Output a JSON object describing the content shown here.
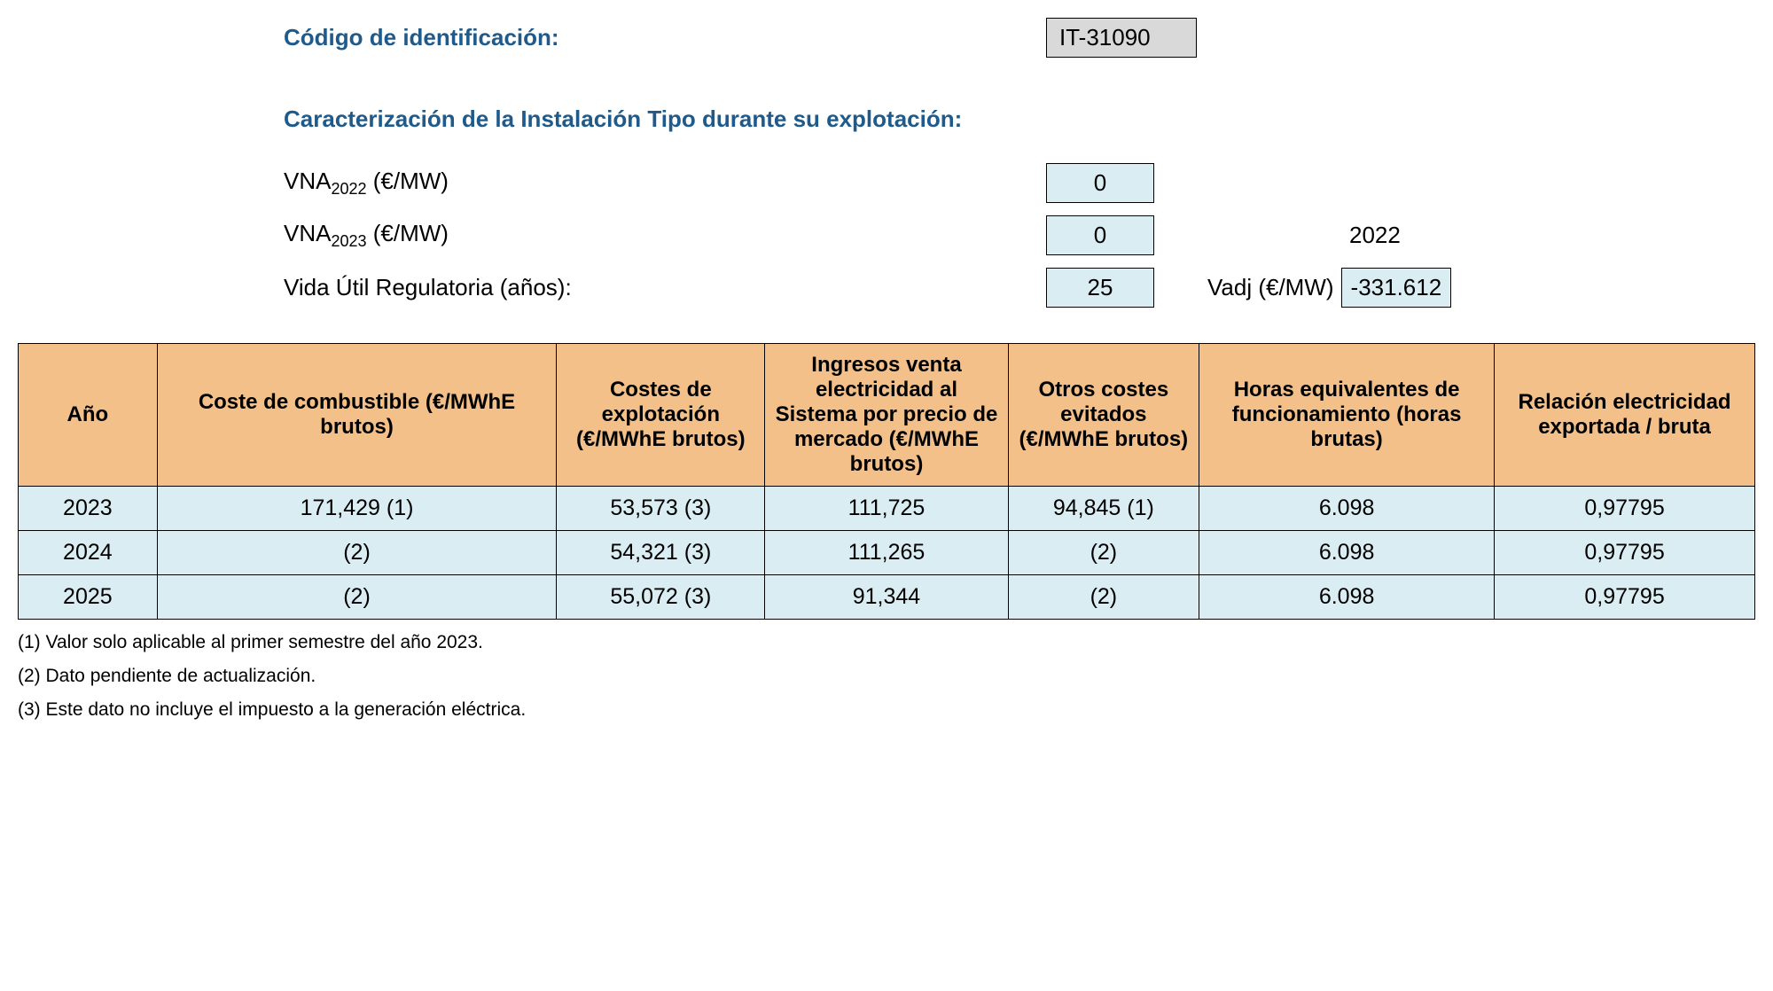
{
  "header": {
    "code_label": "Código de identificación:",
    "code_value": "IT-31090",
    "section_title": "Caracterización de la Instalación Tipo durante su explotación:"
  },
  "params": {
    "vna2022_label_pre": "VNA",
    "vna2022_sub": "2022",
    "vna2022_label_post": " (€/MW)",
    "vna2022_value": "0",
    "vna2023_label_pre": "VNA",
    "vna2023_sub": "2023",
    "vna2023_label_post": " (€/MW)",
    "vna2023_value": "0",
    "year_right": "2022",
    "vida_label": "Vida Útil Regulatoria (años):",
    "vida_value": "25",
    "vadj_label": "Vadj (€/MW)",
    "vadj_value": "-331.612"
  },
  "table": {
    "columns": [
      "Año",
      "Coste de combustible (€/MWhE brutos)",
      "Costes de explotación (€/MWhE brutos)",
      "Ingresos venta electricidad al Sistema por precio de mercado (€/MWhE brutos)",
      "Otros costes evitados (€/MWhE brutos)",
      "Horas equivalentes de funcionamiento (horas brutas)",
      "Relación electricidad exportada / bruta"
    ],
    "rows": [
      [
        "2023",
        "171,429 (1)",
        "53,573 (3)",
        "111,725",
        "94,845 (1)",
        "6.098",
        "0,97795"
      ],
      [
        "2024",
        "(2)",
        "54,321 (3)",
        "111,265",
        "(2)",
        "6.098",
        "0,97795"
      ],
      [
        "2025",
        "(2)",
        "55,072 (3)",
        "91,344",
        "(2)",
        "6.098",
        "0,97795"
      ]
    ]
  },
  "footnotes": {
    "n1": "(1) Valor solo aplicable al primer semestre del año 2023.",
    "n2": "(2) Dato pendiente de actualización.",
    "n3": "(3) Este dato no incluye el impuesto a la generación eléctrica."
  },
  "style": {
    "header_blue": "#1f5a8a",
    "th_bg": "#f4c08a",
    "td_bg": "#d9edf2",
    "code_bg": "#d9d9d9",
    "border": "#000000"
  }
}
